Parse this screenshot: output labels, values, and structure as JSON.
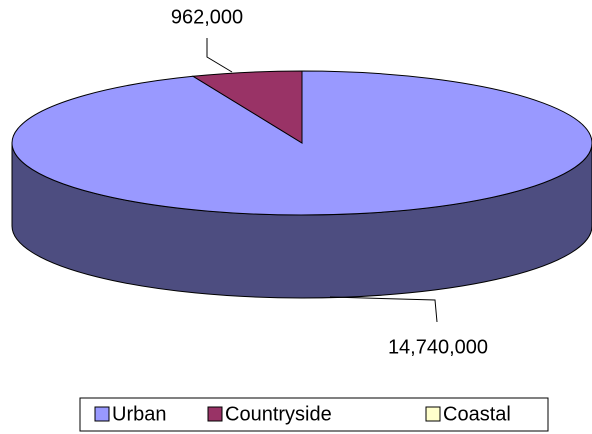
{
  "chart_data": {
    "type": "pie",
    "threed": true,
    "categories": [
      "Urban",
      "Countryside",
      "Coastal"
    ],
    "values": [
      14740000,
      962000,
      0
    ],
    "value_labels": [
      "14,740,000",
      "962,000",
      null
    ],
    "colors": [
      "#9999ff",
      "#993366",
      "#ffffcc"
    ],
    "legend": "bottom"
  }
}
